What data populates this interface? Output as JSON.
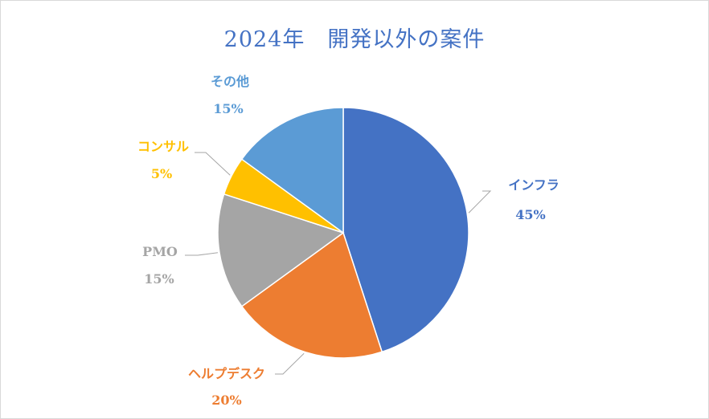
{
  "chart_data": {
    "type": "pie",
    "title": "2024年　開発以外の案件",
    "slices": [
      {
        "label": "インフラ",
        "value": 45,
        "display": "45%",
        "color": "#4472c4"
      },
      {
        "label": "ヘルプデスク",
        "value": 20,
        "display": "20%",
        "color": "#ed7d31"
      },
      {
        "label": "PMO",
        "value": 15,
        "display": "15%",
        "color": "#a5a5a5"
      },
      {
        "label": "コンサル",
        "value": 5,
        "display": "5%",
        "color": "#ffc000"
      },
      {
        "label": "その他",
        "value": 15,
        "display": "15%",
        "color": "#5b9bd5"
      }
    ],
    "legend": "none"
  }
}
